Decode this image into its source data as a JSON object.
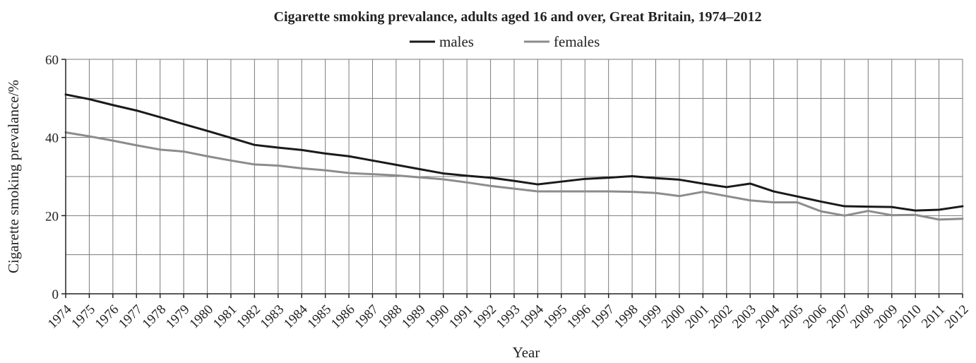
{
  "chart_data": {
    "type": "line",
    "title": "Cigarette smoking prevalance, adults aged 16 and over, Great Britain, 1974–2012",
    "xlabel": "Year",
    "ylabel": "Cigarette smoking prevalance/%",
    "x": [
      "1974",
      "1975",
      "1976",
      "1977",
      "1978",
      "1979",
      "1980",
      "1981",
      "1982",
      "1983",
      "1984",
      "1985",
      "1986",
      "1987",
      "1988",
      "1989",
      "1990",
      "1991",
      "1992",
      "1993",
      "1994",
      "1995",
      "1996",
      "1997",
      "1998",
      "1999",
      "2000",
      "2001",
      "2002",
      "2003",
      "2004",
      "2005",
      "2006",
      "2007",
      "2008",
      "2009",
      "2010",
      "2011",
      "2012"
    ],
    "ylim": [
      0,
      60
    ],
    "yticks": [
      "0",
      "20",
      "40",
      "60"
    ],
    "grid": true,
    "legend_position": "top-center",
    "series": [
      {
        "name": "males",
        "color": "#1a1a1a",
        "values": [
          51.0,
          49.8,
          48.3,
          46.9,
          45.2,
          43.4,
          41.7,
          39.9,
          38.1,
          37.4,
          36.8,
          35.9,
          35.2,
          34.1,
          33.0,
          31.9,
          30.8,
          30.2,
          29.7,
          28.9,
          28.0,
          28.7,
          29.4,
          29.7,
          30.1,
          29.6,
          29.2,
          28.2,
          27.3,
          28.2,
          26.2,
          24.9,
          23.6,
          22.4,
          22.3,
          22.2,
          21.3,
          21.5,
          22.4
        ]
      },
      {
        "name": "females",
        "color": "#8c8c8c",
        "values": [
          41.3,
          40.3,
          39.2,
          38.0,
          36.9,
          36.4,
          35.2,
          34.1,
          33.1,
          32.8,
          32.1,
          31.6,
          30.9,
          30.6,
          30.3,
          29.8,
          29.3,
          28.5,
          27.6,
          26.9,
          26.2,
          26.2,
          26.2,
          26.2,
          26.1,
          25.8,
          25.0,
          26.1,
          25.0,
          23.9,
          23.4,
          23.4,
          21.1,
          20.0,
          21.2,
          20.1,
          20.2,
          19.0,
          19.2
        ]
      }
    ]
  }
}
